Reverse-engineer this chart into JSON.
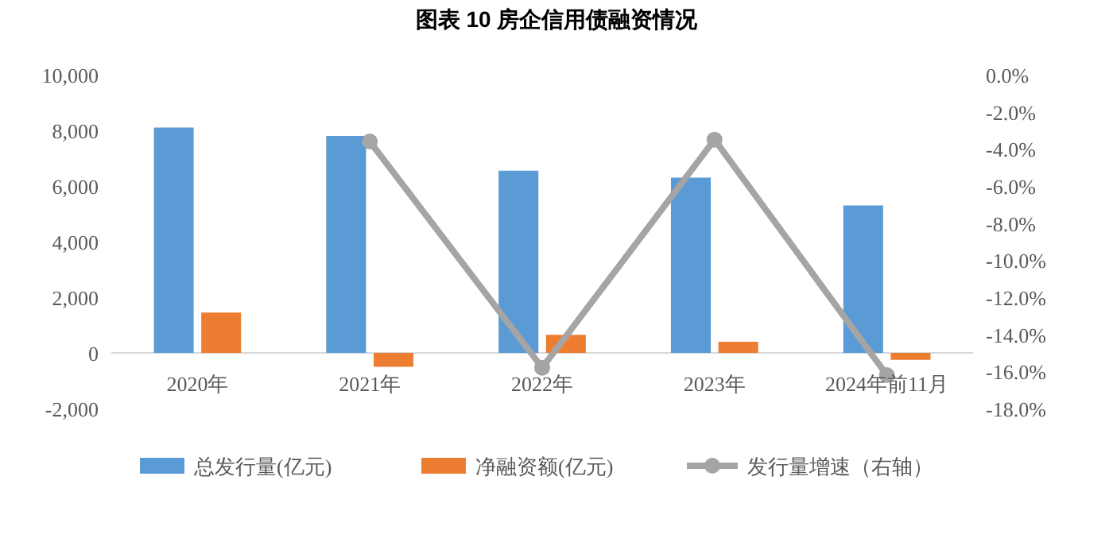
{
  "chart_data": {
    "type": "bar",
    "title": "图表 10 房企信用债融资情况",
    "categories": [
      "2020年",
      "2021年",
      "2022年",
      "2023年",
      "2024年前11月"
    ],
    "series": [
      {
        "name": "总发行量(亿元)",
        "color": "#5b9bd5",
        "values": [
          8100,
          7800,
          6550,
          6300,
          5300
        ]
      },
      {
        "name": "净融资额(亿元)",
        "color": "#ed7d31",
        "values": [
          1450,
          -500,
          650,
          400,
          -250
        ]
      },
      {
        "name": "发行量增速（右轴）",
        "color": "#a5a5a5",
        "type": "line",
        "axis": "y2",
        "marker": "circle",
        "values": [
          null,
          -3.6,
          -15.8,
          -3.5,
          -16.2
        ]
      }
    ],
    "ylim": [
      -2000,
      10000
    ],
    "yticks": [
      {
        "value": -2000,
        "label": "-2,000"
      },
      0,
      {
        "value": 2000,
        "label": "2,000"
      },
      {
        "value": 4000,
        "label": "4,000"
      },
      {
        "value": 6000,
        "label": "6,000"
      },
      {
        "value": 8000,
        "label": "8,000"
      },
      {
        "value": 10000,
        "label": "10,000"
      }
    ],
    "y2lim": [
      -18,
      0
    ],
    "y2ticks": [
      {
        "value": -18,
        "label": "-18.0%"
      },
      {
        "value": -16,
        "label": "-16.0%"
      },
      {
        "value": -14,
        "label": "-14.0%"
      },
      {
        "value": -12,
        "label": "-12.0%"
      },
      {
        "value": -10,
        "label": "-10.0%"
      },
      {
        "value": -8,
        "label": "-8.0%"
      },
      {
        "value": -6,
        "label": "-6.0%"
      },
      {
        "value": -4,
        "label": "-4.0%"
      },
      {
        "value": -2,
        "label": "-2.0%"
      },
      {
        "value": 0,
        "label": "0.0%"
      }
    ],
    "legend": "bottom",
    "grid": false
  }
}
